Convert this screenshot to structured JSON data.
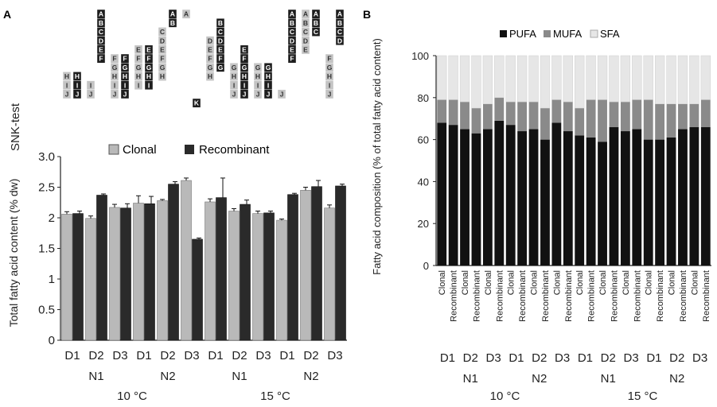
{
  "figure": {
    "panel_a_label": "A",
    "panel_b_label": "B",
    "snk_label": "SNK-test"
  },
  "colors": {
    "clonal": "#b9b9b9",
    "recombinant": "#2a2a2a",
    "pufa": "#111111",
    "mufa": "#8a8a8a",
    "sfa": "#e6e6e6",
    "axis": "#222222"
  },
  "snk": {
    "columns": [
      {
        "group": "10 °C N1 D1 Clonal",
        "letters": [
          "H",
          "I",
          "J"
        ],
        "style": "light"
      },
      {
        "group": "10 °C N1 D1 Recombinant",
        "letters": [
          "H",
          "I",
          "J"
        ],
        "style": "dark"
      },
      {
        "group": "10 °C N1 D2 Clonal",
        "letters": [
          "I",
          "J"
        ],
        "style": "light"
      },
      {
        "group": "10 °C N1 D2 Recombinant",
        "letters": [
          "A",
          "B",
          "C",
          "D",
          "E",
          "F"
        ],
        "style": "dark"
      },
      {
        "group": "10 °C N1 D3 Clonal",
        "letters": [
          "F",
          "G",
          "H",
          "I",
          "J"
        ],
        "style": "light"
      },
      {
        "group": "10 °C N1 D3 Recombinant",
        "letters": [
          "F",
          "G",
          "H",
          "I",
          "J"
        ],
        "style": "dark"
      },
      {
        "group": "10 °C N2 D1 Clonal",
        "letters": [
          "E",
          "F",
          "G",
          "H",
          "I"
        ],
        "style": "light"
      },
      {
        "group": "10 °C N2 D1 Recombinant",
        "letters": [
          "E",
          "F",
          "G",
          "H",
          "I"
        ],
        "style": "dark"
      },
      {
        "group": "10 °C N2 D2 Clonal",
        "letters": [
          "C",
          "D",
          "E",
          "F",
          "G",
          "H"
        ],
        "style": "light"
      },
      {
        "group": "10 °C N2 D2 Recombinant",
        "letters": [
          "A",
          "B"
        ],
        "style": "dark"
      },
      {
        "group": "10 °C N2 D3 Clonal",
        "letters": [
          "A"
        ],
        "style": "light"
      },
      {
        "group": "10 °C N2 D3 Recombinant",
        "letters": [
          "K"
        ],
        "style": "dark"
      },
      {
        "group": "15 °C N1 D1 Clonal",
        "letters": [
          "D",
          "E",
          "F",
          "G",
          "H"
        ],
        "style": "light"
      },
      {
        "group": "15 °C N1 D1 Recombinant",
        "letters": [
          "B",
          "C",
          "D",
          "E",
          "F",
          "G"
        ],
        "style": "dark"
      },
      {
        "group": "15 °C N1 D2 Clonal",
        "letters": [
          "G",
          "H",
          "I",
          "J"
        ],
        "style": "light"
      },
      {
        "group": "15 °C N1 D2 Recombinant",
        "letters": [
          "E",
          "F",
          "G",
          "H",
          "I",
          "J"
        ],
        "style": "dark"
      },
      {
        "group": "15 °C N1 D3 Clonal",
        "letters": [
          "G",
          "H",
          "I",
          "J"
        ],
        "style": "light"
      },
      {
        "group": "15 °C N1 D3 Recombinant",
        "letters": [
          "G",
          "H",
          "I",
          "J"
        ],
        "style": "dark"
      },
      {
        "group": "15 °C N2 D1 Clonal",
        "letters": [
          "J"
        ],
        "style": "light"
      },
      {
        "group": "15 °C N2 D1 Recombinant",
        "letters": [
          "A",
          "B",
          "C",
          "D",
          "E",
          "F"
        ],
        "style": "dark"
      },
      {
        "group": "15 °C N2 D2 Clonal",
        "letters": [
          "A",
          "B",
          "C",
          "D",
          "E"
        ],
        "style": "light"
      },
      {
        "group": "15 °C N2 D2 Recombinant",
        "letters": [
          "A",
          "B",
          "C"
        ],
        "style": "dark"
      },
      {
        "group": "15 °C N2 D3 Clonal",
        "letters": [
          "F",
          "G",
          "H",
          "I",
          "J"
        ],
        "style": "light"
      },
      {
        "group": "15 °C N2 D3 Recombinant",
        "letters": [
          "A",
          "B",
          "C",
          "D"
        ],
        "style": "dark"
      }
    ]
  },
  "chart_data": [
    {
      "type": "bar",
      "panel": "A",
      "ylabel": "Total fatty acid content (% dw)",
      "ylim": [
        0,
        3.0
      ],
      "yticks": [
        "0",
        "0.5",
        "1",
        "1.5",
        "2",
        "2.5",
        "3.0"
      ],
      "grid": false,
      "legend_placement": "top",
      "categories": [
        "D1",
        "D2",
        "D3",
        "D1",
        "D2",
        "D3",
        "D1",
        "D2",
        "D3",
        "D1",
        "D2",
        "D3"
      ],
      "n_labels": [
        "N1",
        "N2",
        "N1",
        "N2"
      ],
      "temp_labels": [
        "10 °C",
        "15 °C"
      ],
      "series": [
        {
          "name": "Clonal",
          "values": [
            2.06,
            1.99,
            2.17,
            2.24,
            2.28,
            2.61,
            2.26,
            2.11,
            2.07,
            1.96,
            2.45,
            2.16
          ],
          "errors": [
            0.04,
            0.04,
            0.05,
            0.12,
            0.02,
            0.04,
            0.05,
            0.04,
            0.04,
            0.02,
            0.05,
            0.05
          ]
        },
        {
          "name": "Recombinant",
          "values": [
            2.07,
            2.37,
            2.16,
            2.23,
            2.55,
            1.65,
            2.33,
            2.22,
            2.08,
            2.38,
            2.51,
            2.52
          ],
          "errors": [
            0.04,
            0.02,
            0.07,
            0.12,
            0.04,
            0.02,
            0.32,
            0.07,
            0.03,
            0.02,
            0.1,
            0.03
          ]
        }
      ]
    },
    {
      "type": "bar",
      "stacked": true,
      "panel": "B",
      "ylabel": "Fatty acid composition (% of total fatty acid content)",
      "ylim": [
        0,
        100
      ],
      "yticks": [
        "0",
        "20",
        "40",
        "60",
        "80",
        "100"
      ],
      "grid": false,
      "legend_placement": "top",
      "categories": [
        "Clonal",
        "Recombinant",
        "Clonal",
        "Recombinant",
        "Clonal",
        "Recombinant",
        "Clonal",
        "Recombinant",
        "Clonal",
        "Recombinant",
        "Clonal",
        "Recombinant",
        "Clonal",
        "Recombinant",
        "Clonal",
        "Recombinant",
        "Clonal",
        "Recombinant",
        "Clonal",
        "Recombinant",
        "Clonal",
        "Recombinant",
        "Clonal",
        "Recombinant"
      ],
      "d_labels": [
        "D1",
        "D2",
        "D3",
        "D1",
        "D2",
        "D3",
        "D1",
        "D2",
        "D3",
        "D1",
        "D2",
        "D3"
      ],
      "n_labels": [
        "N1",
        "N2",
        "N1",
        "N2"
      ],
      "temp_labels": [
        "10 °C",
        "15 °C"
      ],
      "series": [
        {
          "name": "PUFA",
          "values": [
            68,
            67,
            65,
            63,
            65,
            69,
            67,
            64,
            65,
            60,
            68,
            64,
            62,
            61,
            59,
            66,
            64,
            65,
            60,
            60,
            61,
            65,
            66,
            66
          ]
        },
        {
          "name": "MUFA",
          "values": [
            11,
            12,
            13,
            12,
            12,
            11,
            11,
            14,
            13,
            15,
            11,
            14,
            13,
            18,
            20,
            12,
            14,
            14,
            19,
            17,
            16,
            12,
            11,
            13
          ]
        },
        {
          "name": "SFA",
          "values": [
            21,
            21,
            22,
            25,
            23,
            20,
            22,
            22,
            22,
            25,
            21,
            22,
            25,
            21,
            21,
            22,
            22,
            21,
            21,
            23,
            23,
            23,
            23,
            21
          ]
        }
      ]
    }
  ]
}
